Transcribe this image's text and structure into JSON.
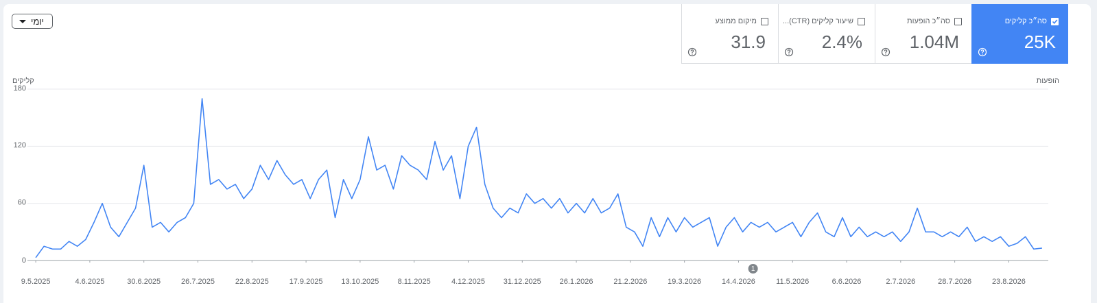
{
  "controls": {
    "granularity": "יומי"
  },
  "metrics": [
    {
      "label": "סה״כ קליקים",
      "value": "25K"
    },
    {
      "label": "סה״כ הופעות",
      "value": "1.04M"
    },
    {
      "label": "שיעור קליקים (CTR)...",
      "value": "2.4%"
    },
    {
      "label": "מיקום ממוצע",
      "value": "31.9"
    }
  ],
  "chart_data": {
    "type": "line",
    "y_label": "קליקים",
    "y2_label": "הופעות",
    "color": "#4285f4",
    "x": [
      0,
      4,
      8,
      12,
      16,
      20,
      24,
      28,
      32,
      36,
      40,
      44,
      48,
      52,
      56,
      60,
      64,
      68,
      72,
      76,
      80,
      84,
      88,
      92,
      96,
      100,
      104,
      108,
      112,
      116,
      120,
      124,
      128,
      132,
      136,
      140,
      144,
      148,
      152,
      156,
      160,
      164,
      168,
      172,
      176,
      180,
      184,
      188,
      192,
      196,
      200,
      204,
      208,
      212,
      216,
      220,
      224,
      228,
      232,
      236,
      240,
      244,
      248,
      252,
      256,
      260,
      264,
      268,
      272,
      276,
      280,
      284,
      288,
      292,
      296,
      300,
      304,
      308,
      312,
      316,
      320,
      324,
      328,
      332,
      336,
      340,
      344,
      348,
      352,
      356,
      360,
      364,
      368,
      372,
      376,
      380,
      384,
      388,
      392,
      396,
      400,
      404,
      408,
      412,
      416,
      420,
      424,
      428,
      432,
      436,
      440,
      444,
      448,
      452,
      456,
      460,
      464,
      468,
      472,
      476,
      480,
      484
    ],
    "values": [
      3,
      15,
      12,
      12,
      20,
      15,
      22,
      40,
      60,
      35,
      25,
      40,
      55,
      100,
      35,
      40,
      30,
      40,
      45,
      60,
      170,
      80,
      85,
      75,
      80,
      65,
      75,
      100,
      85,
      105,
      90,
      80,
      85,
      65,
      85,
      95,
      45,
      85,
      65,
      85,
      130,
      95,
      100,
      75,
      110,
      100,
      95,
      85,
      125,
      95,
      110,
      65,
      120,
      140,
      80,
      55,
      45,
      55,
      50,
      70,
      60,
      65,
      55,
      65,
      50,
      60,
      50,
      65,
      50,
      55,
      70,
      35,
      30,
      15,
      45,
      25,
      45,
      30,
      45,
      35,
      40,
      45,
      15,
      35,
      45,
      30,
      40,
      35,
      40,
      30,
      35,
      40,
      25,
      40,
      50,
      30,
      25,
      45,
      25,
      35,
      25,
      30,
      25,
      30,
      20,
      30,
      55,
      30,
      30,
      25,
      30,
      25,
      35,
      20,
      25,
      20,
      25,
      15,
      18,
      25,
      12,
      13
    ],
    "xlim": [
      -4,
      487
    ],
    "ylim": [
      0,
      180
    ],
    "yticks": [
      0,
      60,
      120,
      180
    ],
    "xticks": [
      {
        "value": 0,
        "label": "9.5.2025"
      },
      {
        "value": 26,
        "label": "4.6.2025"
      },
      {
        "value": 52,
        "label": "30.6.2025"
      },
      {
        "value": 78,
        "label": "26.7.2025"
      },
      {
        "value": 104,
        "label": "22.8.2025"
      },
      {
        "value": 130,
        "label": "17.9.2025"
      },
      {
        "value": 156,
        "label": "13.10.2025"
      },
      {
        "value": 182,
        "label": "8.11.2025"
      },
      {
        "value": 208,
        "label": "4.12.2025"
      },
      {
        "value": 234,
        "label": "31.12.2025"
      },
      {
        "value": 260,
        "label": "26.1.2026"
      },
      {
        "value": 286,
        "label": "21.2.2026"
      },
      {
        "value": 312,
        "label": "19.3.2026"
      },
      {
        "value": 338,
        "label": "14.4.2026"
      },
      {
        "value": 364,
        "label": "11.5.2026"
      },
      {
        "value": 390,
        "label": "6.6.2026"
      },
      {
        "value": 416,
        "label": "2.7.2026"
      },
      {
        "value": 442,
        "label": "28.7.2026"
      },
      {
        "value": 468,
        "label": "23.8.2026"
      }
    ],
    "grid": true,
    "annotations": [
      {
        "x": 345,
        "label": "1"
      }
    ]
  }
}
